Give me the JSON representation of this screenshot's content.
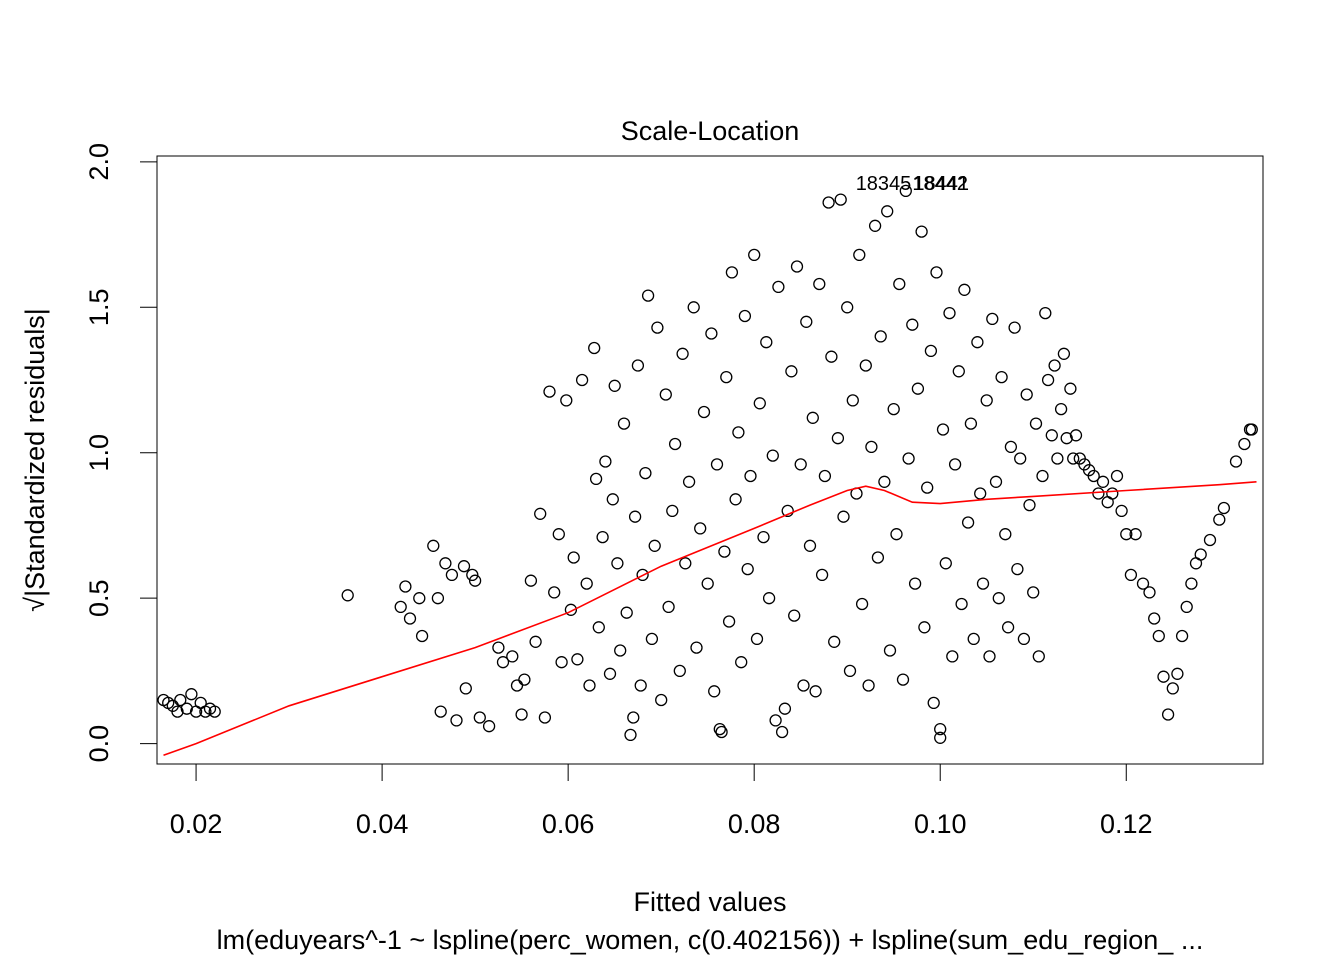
{
  "chart_data": {
    "type": "scatter",
    "title": "Scale-Location",
    "xlabel": "Fitted values",
    "ylabel": "√|Standardized residuals|",
    "subtitle": "lm(eduyears^-1 ~ lspline(perc_women, c(0.402156)) + lspline(sum_edu_region_ ...",
    "xlim": [
      0.0158,
      0.1347
    ],
    "ylim": [
      -0.07,
      2.02
    ],
    "x_ticks": [
      0.02,
      0.04,
      0.06,
      0.08,
      0.1,
      0.12
    ],
    "x_tick_labels": [
      "0.02",
      "0.04",
      "0.06",
      "0.08",
      "0.10",
      "0.12"
    ],
    "y_ticks": [
      0.0,
      0.5,
      1.0,
      1.5,
      2.0
    ],
    "y_tick_labels": [
      "0.0",
      "0.5",
      "1.0",
      "1.5",
      "2.0"
    ],
    "grid": false,
    "point_color": "#000000",
    "smooth_color": "#ff0000",
    "annotations": [
      {
        "text": "18345",
        "x": 0.0939,
        "y": 1.93
      },
      {
        "text": "18442",
        "x": 0.1,
        "y": 1.93
      },
      {
        "text": "18441",
        "x": 0.1001,
        "y": 1.93
      }
    ],
    "points": [
      [
        0.0165,
        0.15
      ],
      [
        0.017,
        0.14
      ],
      [
        0.0175,
        0.13
      ],
      [
        0.018,
        0.11
      ],
      [
        0.0183,
        0.15
      ],
      [
        0.019,
        0.12
      ],
      [
        0.0195,
        0.17
      ],
      [
        0.02,
        0.11
      ],
      [
        0.0205,
        0.14
      ],
      [
        0.021,
        0.11
      ],
      [
        0.0215,
        0.12
      ],
      [
        0.022,
        0.11
      ],
      [
        0.0363,
        0.51
      ],
      [
        0.042,
        0.47
      ],
      [
        0.0425,
        0.54
      ],
      [
        0.043,
        0.43
      ],
      [
        0.044,
        0.5
      ],
      [
        0.0443,
        0.37
      ],
      [
        0.0455,
        0.68
      ],
      [
        0.046,
        0.5
      ],
      [
        0.0463,
        0.11
      ],
      [
        0.0468,
        0.62
      ],
      [
        0.0475,
        0.58
      ],
      [
        0.048,
        0.08
      ],
      [
        0.0488,
        0.61
      ],
      [
        0.049,
        0.19
      ],
      [
        0.0497,
        0.58
      ],
      [
        0.05,
        0.56
      ],
      [
        0.0505,
        0.09
      ],
      [
        0.0515,
        0.06
      ],
      [
        0.0525,
        0.33
      ],
      [
        0.053,
        0.28
      ],
      [
        0.054,
        0.3
      ],
      [
        0.0545,
        0.2
      ],
      [
        0.055,
        0.1
      ],
      [
        0.0553,
        0.22
      ],
      [
        0.056,
        0.56
      ],
      [
        0.0565,
        0.35
      ],
      [
        0.057,
        0.79
      ],
      [
        0.0575,
        0.09
      ],
      [
        0.058,
        1.21
      ],
      [
        0.0585,
        0.52
      ],
      [
        0.059,
        0.72
      ],
      [
        0.0593,
        0.28
      ],
      [
        0.0598,
        1.18
      ],
      [
        0.0603,
        0.46
      ],
      [
        0.0606,
        0.64
      ],
      [
        0.061,
        0.29
      ],
      [
        0.0615,
        1.25
      ],
      [
        0.062,
        0.55
      ],
      [
        0.0623,
        0.2
      ],
      [
        0.0628,
        1.36
      ],
      [
        0.063,
        0.91
      ],
      [
        0.0633,
        0.4
      ],
      [
        0.0637,
        0.71
      ],
      [
        0.064,
        0.97
      ],
      [
        0.0645,
        0.24
      ],
      [
        0.0648,
        0.84
      ],
      [
        0.065,
        1.23
      ],
      [
        0.0653,
        0.62
      ],
      [
        0.0656,
        0.32
      ],
      [
        0.066,
        1.1
      ],
      [
        0.0663,
        0.45
      ],
      [
        0.0667,
        0.03
      ],
      [
        0.067,
        0.09
      ],
      [
        0.0672,
        0.78
      ],
      [
        0.0675,
        1.3
      ],
      [
        0.0678,
        0.2
      ],
      [
        0.068,
        0.58
      ],
      [
        0.0683,
        0.93
      ],
      [
        0.0686,
        1.54
      ],
      [
        0.069,
        0.36
      ],
      [
        0.0693,
        0.68
      ],
      [
        0.0696,
        1.43
      ],
      [
        0.07,
        0.15
      ],
      [
        0.0705,
        1.2
      ],
      [
        0.0708,
        0.47
      ],
      [
        0.0712,
        0.8
      ],
      [
        0.0715,
        1.03
      ],
      [
        0.072,
        0.25
      ],
      [
        0.0723,
        1.34
      ],
      [
        0.0726,
        0.62
      ],
      [
        0.073,
        0.9
      ],
      [
        0.0735,
        1.5
      ],
      [
        0.0738,
        0.33
      ],
      [
        0.0742,
        0.74
      ],
      [
        0.0746,
        1.14
      ],
      [
        0.075,
        0.55
      ],
      [
        0.0754,
        1.41
      ],
      [
        0.0757,
        0.18
      ],
      [
        0.076,
        0.96
      ],
      [
        0.0763,
        0.05
      ],
      [
        0.0765,
        0.04
      ],
      [
        0.0768,
        0.66
      ],
      [
        0.077,
        1.26
      ],
      [
        0.0773,
        0.42
      ],
      [
        0.0776,
        1.62
      ],
      [
        0.078,
        0.84
      ],
      [
        0.0783,
        1.07
      ],
      [
        0.0786,
        0.28
      ],
      [
        0.079,
        1.47
      ],
      [
        0.0793,
        0.6
      ],
      [
        0.0796,
        0.92
      ],
      [
        0.08,
        1.68
      ],
      [
        0.0803,
        0.36
      ],
      [
        0.0806,
        1.17
      ],
      [
        0.081,
        0.71
      ],
      [
        0.0813,
        1.38
      ],
      [
        0.0816,
        0.5
      ],
      [
        0.082,
        0.99
      ],
      [
        0.0823,
        0.08
      ],
      [
        0.0826,
        1.57
      ],
      [
        0.083,
        0.04
      ],
      [
        0.0833,
        0.12
      ],
      [
        0.0836,
        0.8
      ],
      [
        0.084,
        1.28
      ],
      [
        0.0843,
        0.44
      ],
      [
        0.0846,
        1.64
      ],
      [
        0.085,
        0.96
      ],
      [
        0.0853,
        0.2
      ],
      [
        0.0856,
        1.45
      ],
      [
        0.086,
        0.68
      ],
      [
        0.0863,
        1.12
      ],
      [
        0.0866,
        0.18
      ],
      [
        0.087,
        1.58
      ],
      [
        0.0873,
        0.58
      ],
      [
        0.0876,
        0.92
      ],
      [
        0.088,
        1.86
      ],
      [
        0.0883,
        1.33
      ],
      [
        0.0886,
        0.35
      ],
      [
        0.089,
        1.05
      ],
      [
        0.0893,
        1.87
      ],
      [
        0.0896,
        0.78
      ],
      [
        0.09,
        1.5
      ],
      [
        0.0903,
        0.25
      ],
      [
        0.0906,
        1.18
      ],
      [
        0.091,
        0.86
      ],
      [
        0.0913,
        1.68
      ],
      [
        0.0916,
        0.48
      ],
      [
        0.092,
        1.3
      ],
      [
        0.0923,
        0.2
      ],
      [
        0.0926,
        1.02
      ],
      [
        0.093,
        1.78
      ],
      [
        0.0933,
        0.64
      ],
      [
        0.0936,
        1.4
      ],
      [
        0.094,
        0.9
      ],
      [
        0.0943,
        1.83
      ],
      [
        0.0946,
        0.32
      ],
      [
        0.095,
        1.15
      ],
      [
        0.0953,
        0.72
      ],
      [
        0.0956,
        1.58
      ],
      [
        0.096,
        0.22
      ],
      [
        0.0963,
        1.9
      ],
      [
        0.0966,
        0.98
      ],
      [
        0.097,
        1.44
      ],
      [
        0.0973,
        0.55
      ],
      [
        0.0976,
        1.22
      ],
      [
        0.098,
        1.76
      ],
      [
        0.0983,
        0.4
      ],
      [
        0.0986,
        0.88
      ],
      [
        0.099,
        1.35
      ],
      [
        0.0993,
        0.14
      ],
      [
        0.0996,
        1.62
      ],
      [
        0.1,
        0.02
      ],
      [
        0.1,
        0.05
      ],
      [
        0.1003,
        1.08
      ],
      [
        0.1006,
        0.62
      ],
      [
        0.101,
        1.48
      ],
      [
        0.1013,
        0.3
      ],
      [
        0.1016,
        0.96
      ],
      [
        0.102,
        1.28
      ],
      [
        0.1023,
        0.48
      ],
      [
        0.1026,
        1.56
      ],
      [
        0.103,
        0.76
      ],
      [
        0.1033,
        1.1
      ],
      [
        0.1036,
        0.36
      ],
      [
        0.104,
        1.38
      ],
      [
        0.1043,
        0.86
      ],
      [
        0.1046,
        0.55
      ],
      [
        0.105,
        1.18
      ],
      [
        0.1053,
        0.3
      ],
      [
        0.1056,
        1.46
      ],
      [
        0.106,
        0.9
      ],
      [
        0.1063,
        0.5
      ],
      [
        0.1066,
        1.26
      ],
      [
        0.107,
        0.72
      ],
      [
        0.1073,
        0.4
      ],
      [
        0.1076,
        1.02
      ],
      [
        0.108,
        1.43
      ],
      [
        0.1083,
        0.6
      ],
      [
        0.1086,
        0.98
      ],
      [
        0.109,
        0.36
      ],
      [
        0.1093,
        1.2
      ],
      [
        0.1096,
        0.82
      ],
      [
        0.11,
        0.52
      ],
      [
        0.1103,
        1.1
      ],
      [
        0.1106,
        0.3
      ],
      [
        0.111,
        0.92
      ],
      [
        0.1113,
        1.48
      ],
      [
        0.1116,
        1.25
      ],
      [
        0.112,
        1.06
      ],
      [
        0.1123,
        1.3
      ],
      [
        0.1126,
        0.98
      ],
      [
        0.113,
        1.15
      ],
      [
        0.1133,
        1.34
      ],
      [
        0.1136,
        1.05
      ],
      [
        0.114,
        1.22
      ],
      [
        0.1143,
        0.98
      ],
      [
        0.1146,
        1.06
      ],
      [
        0.115,
        0.98
      ],
      [
        0.1155,
        0.96
      ],
      [
        0.116,
        0.94
      ],
      [
        0.1165,
        0.92
      ],
      [
        0.117,
        0.86
      ],
      [
        0.1175,
        0.9
      ],
      [
        0.118,
        0.83
      ],
      [
        0.1185,
        0.86
      ],
      [
        0.119,
        0.92
      ],
      [
        0.1195,
        0.8
      ],
      [
        0.12,
        0.72
      ],
      [
        0.1205,
        0.58
      ],
      [
        0.121,
        0.72
      ],
      [
        0.1218,
        0.55
      ],
      [
        0.1225,
        0.52
      ],
      [
        0.123,
        0.43
      ],
      [
        0.1235,
        0.37
      ],
      [
        0.124,
        0.23
      ],
      [
        0.1245,
        0.1
      ],
      [
        0.125,
        0.19
      ],
      [
        0.1255,
        0.24
      ],
      [
        0.126,
        0.37
      ],
      [
        0.1265,
        0.47
      ],
      [
        0.127,
        0.55
      ],
      [
        0.1275,
        0.62
      ],
      [
        0.128,
        0.65
      ],
      [
        0.129,
        0.7
      ],
      [
        0.13,
        0.77
      ],
      [
        0.1305,
        0.81
      ],
      [
        0.1318,
        0.97
      ],
      [
        0.1327,
        1.03
      ],
      [
        0.1333,
        1.08
      ],
      [
        0.1335,
        1.08
      ]
    ],
    "smooth_line": [
      [
        0.0165,
        -0.04
      ],
      [
        0.02,
        0.0
      ],
      [
        0.03,
        0.13
      ],
      [
        0.04,
        0.23
      ],
      [
        0.05,
        0.33
      ],
      [
        0.06,
        0.45
      ],
      [
        0.07,
        0.61
      ],
      [
        0.08,
        0.74
      ],
      [
        0.086,
        0.82
      ],
      [
        0.09,
        0.87
      ],
      [
        0.092,
        0.885
      ],
      [
        0.094,
        0.87
      ],
      [
        0.097,
        0.83
      ],
      [
        0.1,
        0.825
      ],
      [
        0.105,
        0.84
      ],
      [
        0.11,
        0.85
      ],
      [
        0.12,
        0.87
      ],
      [
        0.13,
        0.89
      ],
      [
        0.134,
        0.9
      ]
    ]
  }
}
